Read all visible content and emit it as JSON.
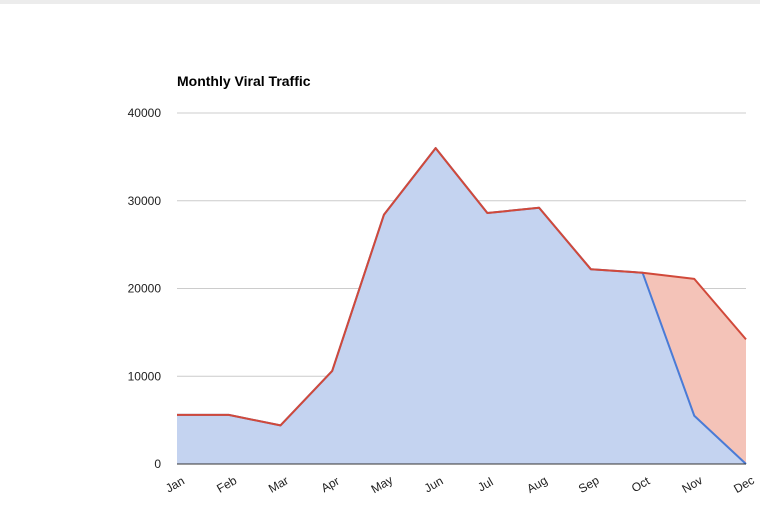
{
  "chart_data": {
    "type": "area",
    "title": "Monthly Viral Traffic",
    "xlabel": "",
    "ylabel": "",
    "categories": [
      "Jan",
      "Feb",
      "Mar",
      "Apr",
      "May",
      "Jun",
      "Jul",
      "Aug",
      "Sep",
      "Oct",
      "Nov",
      "Dec"
    ],
    "ylim": [
      0,
      40000
    ],
    "yticks": [
      "0",
      "10000",
      "20000",
      "30000",
      "40000"
    ],
    "grid": true,
    "legend": "none",
    "series": [
      {
        "values": [
          5600,
          5600,
          4400,
          10600,
          28400,
          36000,
          28600,
          29200,
          22200,
          21800,
          5500,
          0
        ],
        "fill": "#c4d3f0",
        "stroke": "#4a7bd6"
      },
      {
        "values": [
          5600,
          5600,
          4400,
          10600,
          28400,
          36000,
          28600,
          29200,
          22200,
          21800,
          21100,
          14200
        ],
        "fill": "#f4c3b8",
        "stroke": "#d1493a"
      }
    ]
  }
}
